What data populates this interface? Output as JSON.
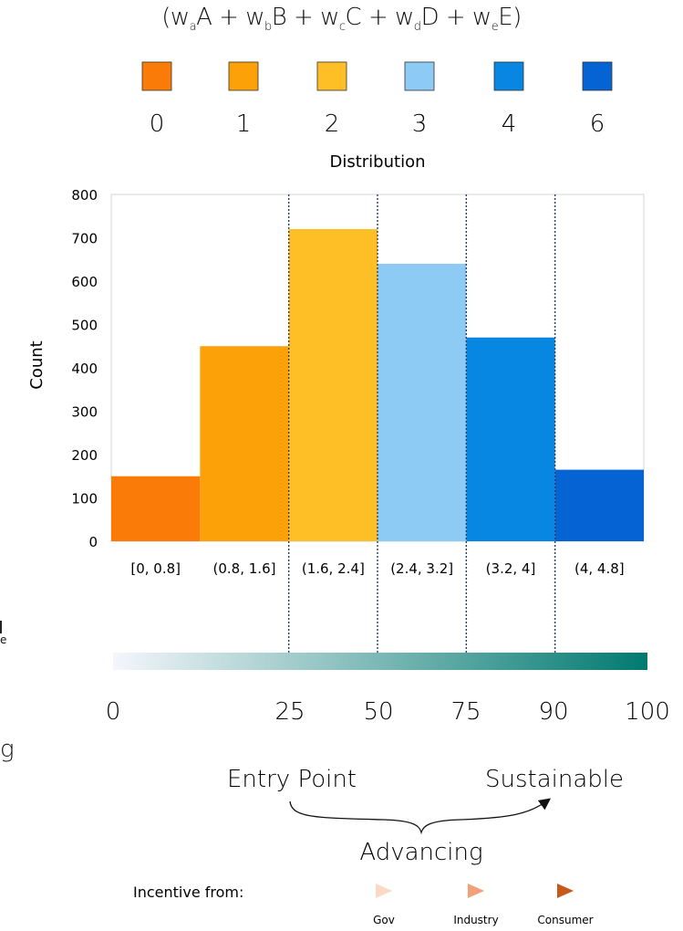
{
  "formula": {
    "open": "(",
    "terms": [
      {
        "w": "w",
        "sub": "a",
        "var": "A"
      },
      {
        "w": "w",
        "sub": "b",
        "var": "B"
      },
      {
        "w": "w",
        "sub": "c",
        "var": "C"
      },
      {
        "w": "w",
        "sub": "d",
        "var": "D"
      },
      {
        "w": "w",
        "sub": "e",
        "var": "E"
      }
    ],
    "plus": " + ",
    "close": ")"
  },
  "distribution_legend": {
    "label": "Distribution",
    "items": [
      {
        "value": "0",
        "color": "#fb7b08"
      },
      {
        "value": "1",
        "color": "#fca108"
      },
      {
        "value": "2",
        "color": "#fdbf25"
      },
      {
        "value": "3",
        "color": "#8dcbf5"
      },
      {
        "value": "4",
        "color": "#0787e2"
      },
      {
        "value": "6",
        "color": "#0563d4"
      }
    ]
  },
  "chart_data": {
    "type": "bar",
    "categories": [
      "[0, 0.8]",
      "(0.8, 1.6]",
      "(1.6, 2.4]",
      "(2.4, 3.2]",
      "(3.2, 4]",
      "(4, 4.8]"
    ],
    "values": [
      150,
      450,
      720,
      640,
      470,
      165
    ],
    "colors": [
      "#fb7b08",
      "#fca108",
      "#fdbf25",
      "#8dcbf5",
      "#0787e2",
      "#0563d4"
    ],
    "ylabel": "Count",
    "ylim": [
      0,
      800
    ],
    "yticks": [
      0,
      100,
      200,
      300,
      400,
      500,
      600,
      700,
      800
    ],
    "grid": false
  },
  "scale": {
    "ticks": [
      "0",
      "25",
      "50",
      "75",
      "90",
      "100"
    ],
    "gradient_start": "#f4f6fb",
    "gradient_end": "#017a70"
  },
  "stages": {
    "entry": "Entry Point",
    "sustainable": "Sustainable",
    "advancing": "Advancing"
  },
  "incentive": {
    "label": "Incentive from:",
    "items": [
      {
        "name": "Gov",
        "color": "#fbd9c4"
      },
      {
        "name": "Industry",
        "color": "#f1a07a"
      },
      {
        "name": "Consumer",
        "color": "#c85a19"
      }
    ]
  },
  "edge_fragments": {
    "mid": "e",
    "lower": "g"
  }
}
